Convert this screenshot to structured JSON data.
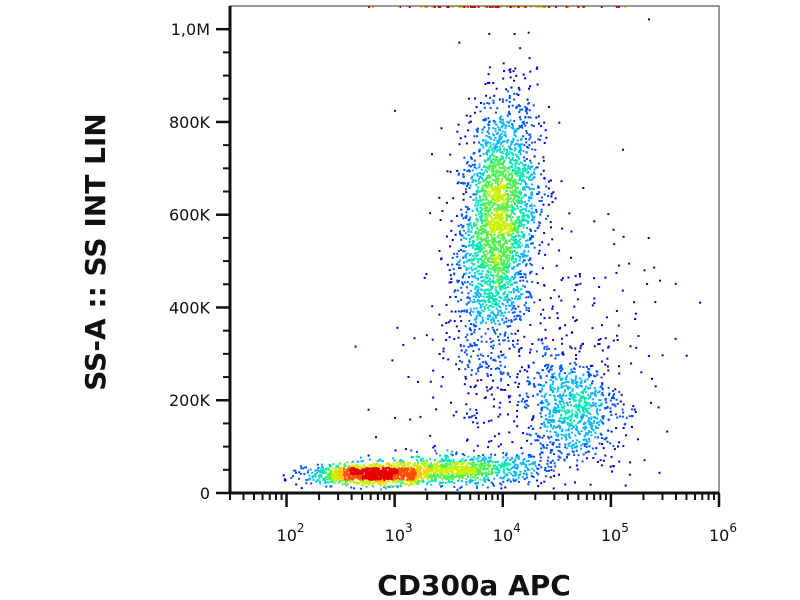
{
  "chart_data": {
    "type": "scatter",
    "subtype": "flow-cytometry density dot plot",
    "xlabel": "CD300a APC",
    "ylabel": "SS-A :: SS INT LIN",
    "xscale": "log",
    "yscale": "linear",
    "xlim": [
      30,
      1000000
    ],
    "ylim": [
      0,
      1050000
    ],
    "x_ticks": [
      {
        "value": 100,
        "base": "10",
        "exp": "2"
      },
      {
        "value": 1000,
        "base": "10",
        "exp": "3"
      },
      {
        "value": 10000,
        "base": "10",
        "exp": "4"
      },
      {
        "value": 100000,
        "base": "10",
        "exp": "5"
      },
      {
        "value": 1000000,
        "base": "10",
        "exp": "6"
      }
    ],
    "y_ticks": [
      {
        "value": 0,
        "label": "0"
      },
      {
        "value": 200000,
        "label": "200K"
      },
      {
        "value": 400000,
        "label": "400K"
      },
      {
        "value": 600000,
        "label": "600K"
      },
      {
        "value": 800000,
        "label": "800K"
      },
      {
        "value": 1000000,
        "label": "1,0M"
      }
    ],
    "colormap": [
      "#0000cc",
      "#0050ff",
      "#00b4ff",
      "#00e6b4",
      "#50f050",
      "#c8f000",
      "#ffc800",
      "#ff5000",
      "#e60000"
    ],
    "populations": [
      {
        "x_center": 9000,
        "x_log_sd": 0.18,
        "y_center": 580000,
        "y_sd": 130000,
        "weight": 0.46,
        "tilt": 0.28
      },
      {
        "x_center": 650,
        "x_log_sd": 0.3,
        "y_center": 40000,
        "y_sd": 11000,
        "weight": 0.2,
        "tilt": 0
      },
      {
        "x_center": 4000,
        "x_log_sd": 0.4,
        "y_center": 50000,
        "y_sd": 15000,
        "weight": 0.14,
        "tilt": 0.05
      },
      {
        "x_center": 45000,
        "x_log_sd": 0.22,
        "y_center": 180000,
        "y_sd": 55000,
        "weight": 0.12,
        "tilt": 0
      },
      {
        "x_center": 20000,
        "x_log_sd": 0.55,
        "y_center": 250000,
        "y_sd": 180000,
        "weight": 0.08,
        "tilt": 0
      }
    ]
  }
}
